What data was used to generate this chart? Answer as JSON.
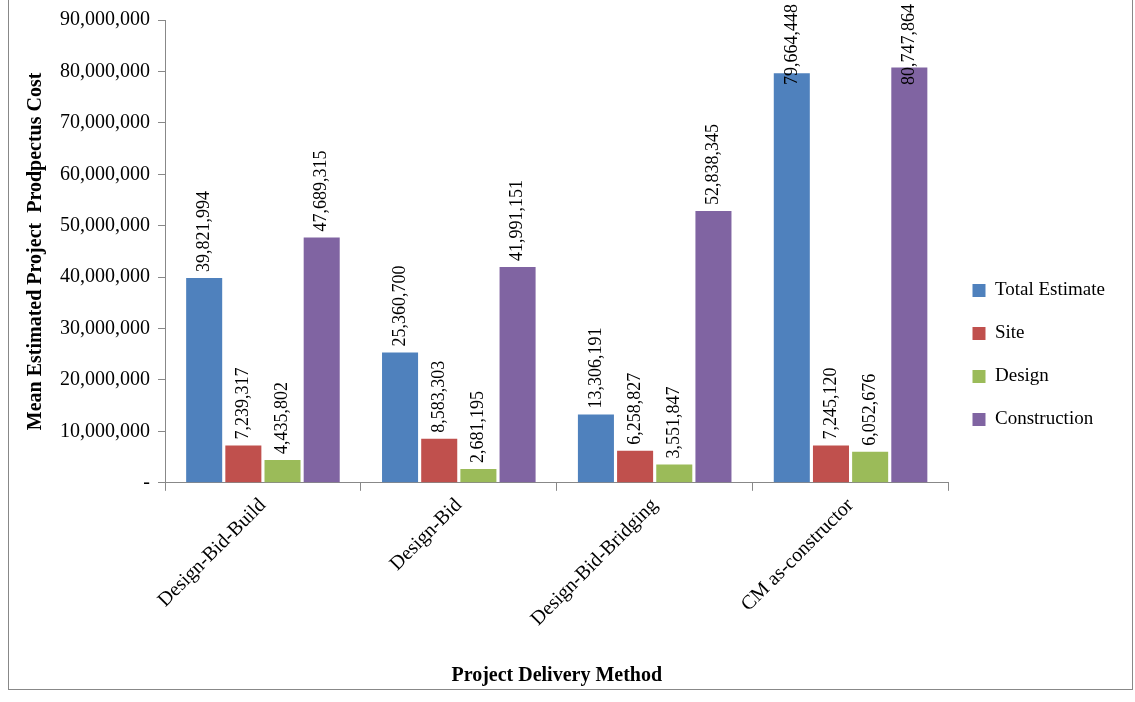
{
  "chart_data": {
    "type": "bar",
    "xlabel": "Project Delivery Method",
    "ylabel": "Mean Estimated Project  Prodpectus Cost",
    "categories": [
      "Design-Bid-Build",
      "Design-Bid",
      "Design-Bid-Bridging",
      "CM as-constructor"
    ],
    "series": [
      {
        "name": "Total Estimate",
        "color": "#4f81bd",
        "values": [
          39821994,
          25360700,
          13306191,
          79664448
        ],
        "value_labels": [
          "39,821,994",
          "25,360,700",
          "13,306,191",
          "79,664,448"
        ]
      },
      {
        "name": "Site",
        "color": "#c0504d",
        "values": [
          7239317,
          8583303,
          6258827,
          7245120
        ],
        "value_labels": [
          "7,239,317",
          "8,583,303",
          "6,258,827",
          "7,245,120"
        ]
      },
      {
        "name": "Design",
        "color": "#9bbb59",
        "values": [
          4435802,
          2681195,
          3551847,
          6052676
        ],
        "value_labels": [
          "4,435,802",
          "2,681,195",
          "3,551,847",
          "6,052,676"
        ]
      },
      {
        "name": "Construction",
        "color": "#8064a2",
        "values": [
          47689315,
          41991151,
          52838345,
          80747864
        ],
        "value_labels": [
          "47,689,315",
          "41,991,151",
          "52,838,345",
          "80,747,864"
        ]
      }
    ],
    "ylim": [
      0,
      90000000
    ],
    "yticks": [
      {
        "value": 0,
        "label": "-"
      },
      {
        "value": 10000000,
        "label": "10,000,000"
      },
      {
        "value": 20000000,
        "label": "20,000,000"
      },
      {
        "value": 30000000,
        "label": "30,000,000"
      },
      {
        "value": 40000000,
        "label": "40,000,000"
      },
      {
        "value": 50000000,
        "label": "50,000,000"
      },
      {
        "value": 60000000,
        "label": "60,000,000"
      },
      {
        "value": 70000000,
        "label": "70,000,000"
      },
      {
        "value": 80000000,
        "label": "80,000,000"
      },
      {
        "value": 90000000,
        "label": "90,000,000"
      }
    ],
    "grid": false,
    "legend": "right"
  }
}
